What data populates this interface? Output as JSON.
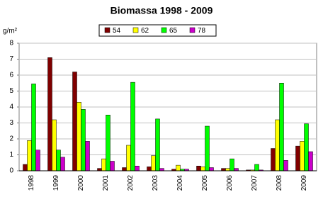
{
  "chart_data": {
    "type": "bar",
    "title": "Biomassa  1998 - 2009",
    "y_label": "g/m²",
    "categories": [
      "1998",
      "1999",
      "2000",
      "2001",
      "2002",
      "2003",
      "2004",
      "2005",
      "2006",
      "2007",
      "2008",
      "2009"
    ],
    "series": [
      {
        "name": "54",
        "color": "#800000",
        "values": [
          0.4,
          7.1,
          6.2,
          0.15,
          0.2,
          0.25,
          0.1,
          0.3,
          0.15,
          0.05,
          1.4,
          1.55
        ]
      },
      {
        "name": "62",
        "color": "#ffff00",
        "values": [
          1.9,
          3.2,
          4.3,
          0.75,
          1.6,
          0.95,
          0.35,
          0.25,
          0.15,
          0.05,
          3.2,
          1.85
        ]
      },
      {
        "name": "65",
        "color": "#00ff00",
        "values": [
          5.45,
          1.3,
          3.85,
          3.5,
          5.55,
          3.25,
          0.1,
          2.8,
          0.75,
          0.4,
          5.5,
          2.95
        ]
      },
      {
        "name": "78",
        "color": "#cc00cc",
        "values": [
          1.3,
          0.85,
          1.85,
          0.6,
          0.3,
          0.15,
          0.1,
          0.2,
          0.15,
          0.05,
          0.65,
          1.2
        ]
      }
    ],
    "ylim": [
      0,
      8
    ],
    "yticks": [
      0,
      1,
      2,
      3,
      4,
      5,
      6,
      7,
      8
    ],
    "grid": true,
    "legend": "top"
  }
}
